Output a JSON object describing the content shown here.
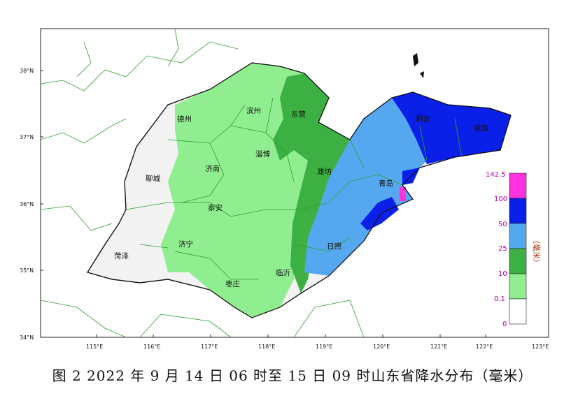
{
  "map": {
    "lat_labels": [
      "38°N",
      "37°N",
      "36°N",
      "35°N",
      "34°N"
    ],
    "lon_labels": [
      "115°E",
      "116°E",
      "117°E",
      "118°E",
      "119°E",
      "120°E",
      "121°E",
      "122°E",
      "123°E"
    ],
    "cities": [
      {
        "name": "德州"
      },
      {
        "name": "滨州"
      },
      {
        "name": "东营"
      },
      {
        "name": "烟台"
      },
      {
        "name": "威海"
      },
      {
        "name": "聊城"
      },
      {
        "name": "济南"
      },
      {
        "name": "淄博"
      },
      {
        "name": "潍坊"
      },
      {
        "name": "青岛"
      },
      {
        "name": "泰安"
      },
      {
        "name": "济宁"
      },
      {
        "name": "菏泽"
      },
      {
        "name": "日照"
      },
      {
        "name": "临沂"
      },
      {
        "name": "枣庄"
      }
    ],
    "colors": {
      "no_rain": "#f2f2f2",
      "light": "#90ee90",
      "moderate": "#3cb043",
      "heavy": "#55a8f0",
      "rainstorm": "#0a1fe8",
      "extreme": "#ff33dd",
      "boundary": "#2f9e2f"
    }
  },
  "legend": {
    "max_label": "142.5",
    "levels": [
      "100",
      "50",
      "25",
      "10",
      "0.1",
      "0"
    ],
    "unit": "（毫米）"
  },
  "caption": "图 2  2022 年 9 月 14 日 06 时至 15 日 09 时山东省降水分布（毫米）"
}
